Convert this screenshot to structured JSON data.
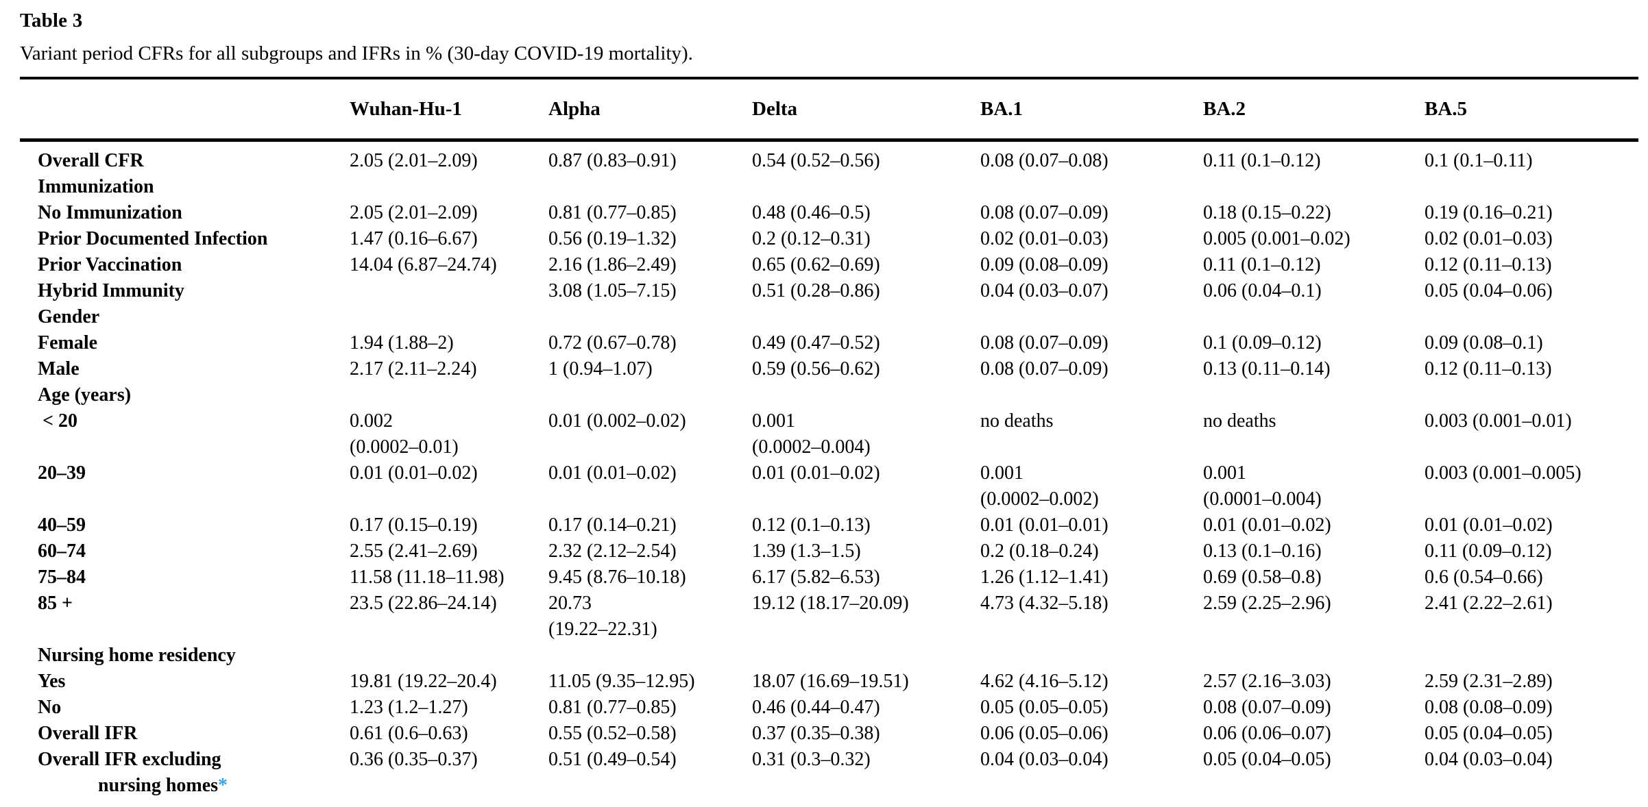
{
  "table": {
    "label": "Table 3",
    "caption": "Variant period CFRs for all subgroups and IFRs in % (30-day COVID-19 mortality).",
    "accent_color": "#3ba2de",
    "columns": [
      "",
      "Wuhan-Hu-1",
      "Alpha",
      "Delta",
      "BA.1",
      "BA.2",
      "BA.5"
    ],
    "rows": [
      {
        "label": "Overall CFR",
        "section": false,
        "values": [
          "2.05 (2.01–2.09)",
          "0.87 (0.83–0.91)",
          "0.54 (0.52–0.56)",
          "0.08 (0.07–0.08)",
          "0.11 (0.1–0.12)",
          "0.1 (0.1–0.11)"
        ]
      },
      {
        "label": "Immunization",
        "section": true,
        "values": [
          "",
          "",
          "",
          "",
          "",
          ""
        ]
      },
      {
        "label": "No Immunization",
        "section": false,
        "values": [
          "2.05 (2.01–2.09)",
          "0.81 (0.77–0.85)",
          "0.48 (0.46–0.5)",
          "0.08 (0.07–0.09)",
          "0.18 (0.15–0.22)",
          "0.19 (0.16–0.21)"
        ]
      },
      {
        "label": "Prior Documented Infection",
        "section": false,
        "values": [
          "1.47 (0.16–6.67)",
          "0.56 (0.19–1.32)",
          "0.2 (0.12–0.31)",
          "0.02 (0.01–0.03)",
          "0.005 (0.001–0.02)",
          "0.02 (0.01–0.03)"
        ]
      },
      {
        "label": "Prior Vaccination",
        "section": false,
        "values": [
          "14.04 (6.87–24.74)",
          "2.16 (1.86–2.49)",
          "0.65 (0.62–0.69)",
          "0.09 (0.08–0.09)",
          "0.11 (0.1–0.12)",
          "0.12 (0.11–0.13)"
        ]
      },
      {
        "label": "Hybrid Immunity",
        "section": false,
        "values": [
          "",
          "3.08 (1.05–7.15)",
          "0.51 (0.28–0.86)",
          "0.04 (0.03–0.07)",
          "0.06 (0.04–0.1)",
          "0.05 (0.04–0.06)"
        ]
      },
      {
        "label": "Gender",
        "section": true,
        "values": [
          "",
          "",
          "",
          "",
          "",
          ""
        ]
      },
      {
        "label": "Female",
        "section": false,
        "values": [
          "1.94 (1.88–2)",
          "0.72 (0.67–0.78)",
          "0.49 (0.47–0.52)",
          "0.08 (0.07–0.09)",
          "0.1 (0.09–0.12)",
          "0.09 (0.08–0.1)"
        ]
      },
      {
        "label": "Male",
        "section": false,
        "values": [
          "2.17 (2.11–2.24)",
          "1 (0.94–1.07)",
          "0.59 (0.56–0.62)",
          "0.08 (0.07–0.09)",
          "0.13 (0.11–0.14)",
          "0.12 (0.11–0.13)"
        ]
      },
      {
        "label": "Age (years)",
        "section": true,
        "values": [
          "",
          "",
          "",
          "",
          "",
          ""
        ]
      },
      {
        "label": " < 20",
        "section": false,
        "values": [
          "0.002\n(0.0002–0.01)",
          "0.01 (0.002–0.02)",
          "0.001\n(0.0002–0.004)",
          "no deaths",
          "no deaths",
          "0.003 (0.001–0.01)"
        ]
      },
      {
        "label": "20–39",
        "section": false,
        "values": [
          "0.01 (0.01–0.02)",
          "0.01 (0.01–0.02)",
          "0.01 (0.01–0.02)",
          "0.001\n(0.0002–0.002)",
          "0.001\n(0.0001–0.004)",
          "0.003 (0.001–0.005)"
        ]
      },
      {
        "label": "40–59",
        "section": false,
        "values": [
          "0.17 (0.15–0.19)",
          "0.17 (0.14–0.21)",
          "0.12 (0.1–0.13)",
          "0.01 (0.01–0.01)",
          "0.01 (0.01–0.02)",
          "0.01 (0.01–0.02)"
        ]
      },
      {
        "label": "60–74",
        "section": false,
        "values": [
          "2.55 (2.41–2.69)",
          "2.32 (2.12–2.54)",
          "1.39 (1.3–1.5)",
          "0.2 (0.18–0.24)",
          "0.13 (0.1–0.16)",
          "0.11 (0.09–0.12)"
        ]
      },
      {
        "label": "75–84",
        "section": false,
        "values": [
          "11.58 (11.18–11.98)",
          "9.45 (8.76–10.18)",
          "6.17 (5.82–6.53)",
          "1.26 (1.12–1.41)",
          "0.69 (0.58–0.8)",
          "0.6 (0.54–0.66)"
        ]
      },
      {
        "label": "85 +",
        "section": false,
        "values": [
          "23.5 (22.86–24.14)",
          "20.73\n(19.22–22.31)",
          "19.12 (18.17–20.09)",
          "4.73 (4.32–5.18)",
          "2.59 (2.25–2.96)",
          "2.41 (2.22–2.61)"
        ]
      },
      {
        "label": "Nursing home residency",
        "section": true,
        "values": [
          "",
          "",
          "",
          "",
          "",
          ""
        ]
      },
      {
        "label": "Yes",
        "section": false,
        "values": [
          "19.81 (19.22–20.4)",
          "11.05 (9.35–12.95)",
          "18.07 (16.69–19.51)",
          "4.62 (4.16–5.12)",
          "2.57 (2.16–3.03)",
          "2.59 (2.31–2.89)"
        ]
      },
      {
        "label": "No",
        "section": false,
        "values": [
          "1.23 (1.2–1.27)",
          "0.81 (0.77–0.85)",
          "0.46 (0.44–0.47)",
          "0.05 (0.05–0.05)",
          "0.08 (0.07–0.09)",
          "0.08 (0.08–0.09)"
        ]
      },
      {
        "label": "Overall IFR",
        "section": false,
        "values": [
          "0.61 (0.6–0.63)",
          "0.55 (0.52–0.58)",
          "0.37 (0.35–0.38)",
          "0.06 (0.05–0.06)",
          "0.06 (0.06–0.07)",
          "0.05 (0.04–0.05)"
        ]
      },
      {
        "label": "Overall IFR excluding\nnursing homes",
        "section": false,
        "footnote_marker": "*",
        "values": [
          "0.36 (0.35–0.37)",
          "0.51 (0.49–0.54)",
          "0.31 (0.3–0.32)",
          "0.04 (0.03–0.04)",
          "0.05 (0.04–0.05)",
          "0.04 (0.03–0.04)"
        ]
      }
    ]
  }
}
